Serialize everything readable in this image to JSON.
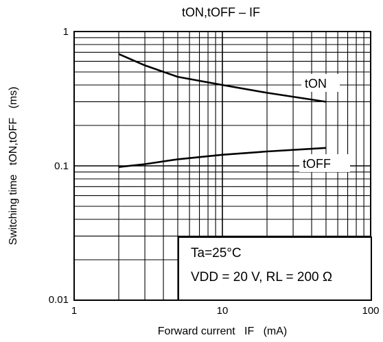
{
  "chart_data": {
    "type": "line",
    "title": "tON,tOFF – IF",
    "xlabel": "Forward current   IF   (mA)",
    "ylabel": "Switching time   tON,tOFF   (ms)",
    "x_scale": "log",
    "y_scale": "log",
    "xlim": [
      1,
      100
    ],
    "ylim": [
      0.01,
      1
    ],
    "x_tick_labels": [
      "1",
      "10",
      "100"
    ],
    "y_tick_labels": [
      "0.01",
      "0.1",
      "1"
    ],
    "grid": true,
    "series": [
      {
        "name": "tON",
        "x": [
          2,
          3,
          5,
          10,
          20,
          50
        ],
        "y": [
          0.68,
          0.56,
          0.46,
          0.4,
          0.35,
          0.3
        ]
      },
      {
        "name": "tOFF",
        "x": [
          2,
          3,
          5,
          10,
          20,
          50
        ],
        "y": [
          0.098,
          0.103,
          0.112,
          0.121,
          0.128,
          0.136
        ]
      }
    ],
    "annotations": {
      "condition_line1": "Ta=25°C",
      "condition_line2": "VDD = 20 V, RL = 200 Ω"
    }
  }
}
